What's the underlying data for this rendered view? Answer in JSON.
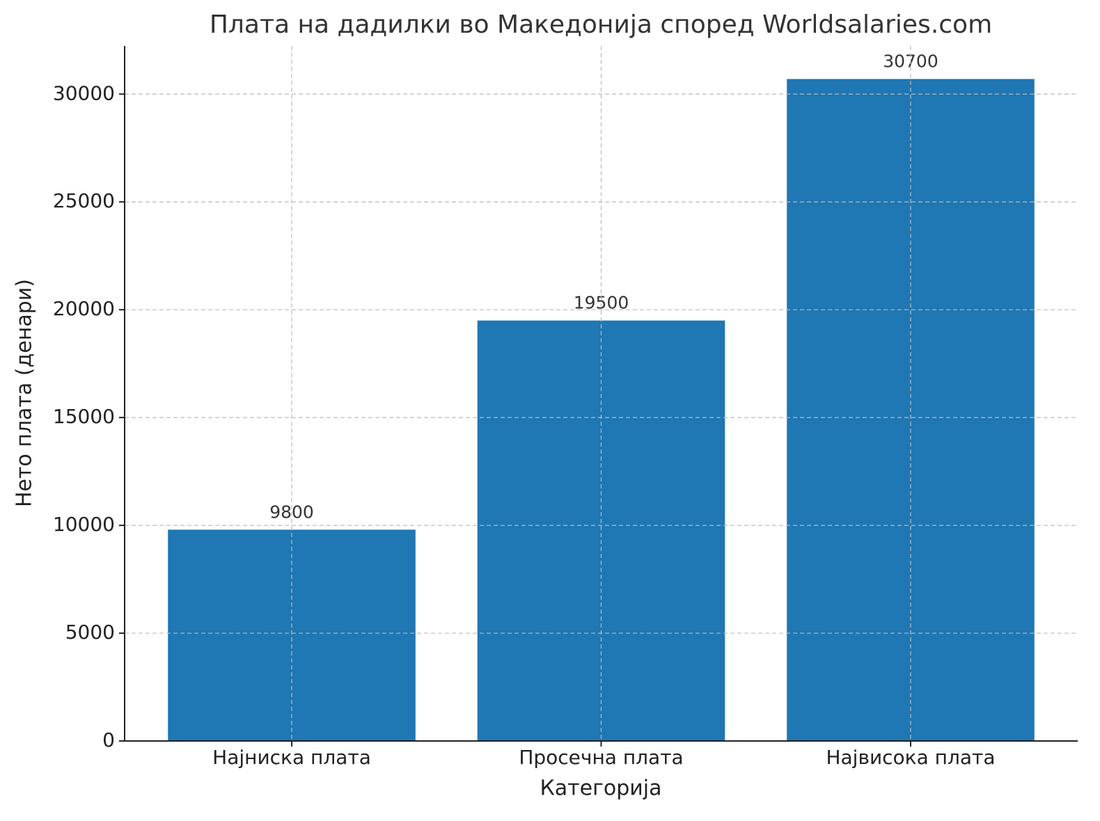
{
  "chart_data": {
    "type": "bar",
    "title": "Плата на дадилки во Македонија според Worldsalaries.com",
    "xlabel": "Категорија",
    "ylabel": "Нето плата (денари)",
    "categories": [
      "Најниска плата",
      "Просечна плата",
      "Највисока плата"
    ],
    "values": [
      9800,
      19500,
      30700
    ],
    "color": "#1f77b4",
    "ylim": [
      0,
      32235
    ],
    "yticks": [
      0,
      5000,
      10000,
      15000,
      20000,
      25000,
      30000
    ],
    "grid": true
  }
}
